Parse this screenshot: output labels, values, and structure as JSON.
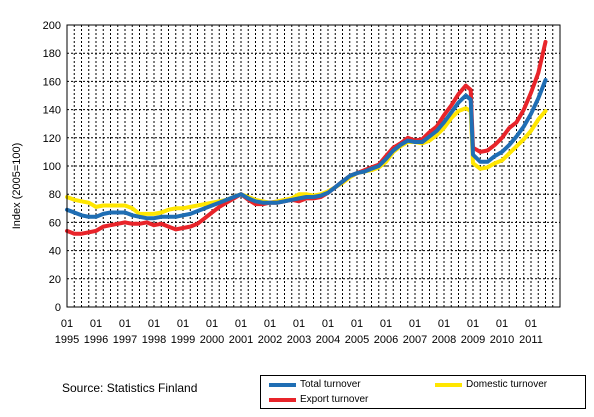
{
  "chart_data": {
    "type": "line",
    "title": "",
    "xlabel": "",
    "ylabel": "Index (2005=100)",
    "ylim": [
      0,
      200
    ],
    "yticks": [
      0,
      20,
      40,
      60,
      80,
      100,
      120,
      140,
      160,
      180,
      200
    ],
    "xrange": [
      1995.0,
      2012.0
    ],
    "grid": true,
    "legend_position": "bottom-right",
    "x_tick_years": [
      "1995",
      "1996",
      "1997",
      "1998",
      "1999",
      "2000",
      "2001",
      "2002",
      "2003",
      "2004",
      "2005",
      "2006",
      "2007",
      "2008",
      "2009",
      "2010",
      "2011"
    ],
    "x_tick_month_label": "01",
    "x_tick_month_years": [
      1995,
      1996,
      1997,
      1998,
      1999,
      2000,
      2001,
      2002,
      2003,
      2004,
      2005,
      2006,
      2007,
      2008,
      2009,
      2010,
      2011
    ],
    "series": [
      {
        "name": "Domestic turnover",
        "color": "#ffe600",
        "points": [
          [
            1995.0,
            78
          ],
          [
            1995.25,
            76
          ],
          [
            1995.5,
            75
          ],
          [
            1995.75,
            74
          ],
          [
            1996.0,
            71
          ],
          [
            1996.25,
            72
          ],
          [
            1996.5,
            72
          ],
          [
            1996.75,
            72
          ],
          [
            1997.0,
            72
          ],
          [
            1997.25,
            70
          ],
          [
            1997.5,
            66
          ],
          [
            1997.75,
            66
          ],
          [
            1998.0,
            66
          ],
          [
            1998.25,
            67
          ],
          [
            1998.5,
            69
          ],
          [
            1998.75,
            70
          ],
          [
            1999.0,
            70
          ],
          [
            1999.25,
            71
          ],
          [
            1999.5,
            72
          ],
          [
            1999.75,
            73
          ],
          [
            2000.0,
            74
          ],
          [
            2000.25,
            75
          ],
          [
            2000.5,
            76
          ],
          [
            2000.75,
            78
          ],
          [
            2001.0,
            80
          ],
          [
            2001.25,
            78
          ],
          [
            2001.5,
            76
          ],
          [
            2001.75,
            75
          ],
          [
            2002.0,
            74
          ],
          [
            2002.25,
            75
          ],
          [
            2002.5,
            76
          ],
          [
            2002.75,
            77
          ],
          [
            2003.0,
            80
          ],
          [
            2003.25,
            80
          ],
          [
            2003.5,
            79
          ],
          [
            2003.75,
            80
          ],
          [
            2004.0,
            82
          ],
          [
            2004.25,
            85
          ],
          [
            2004.5,
            88
          ],
          [
            2004.75,
            92
          ],
          [
            2005.0,
            95
          ],
          [
            2005.25,
            96
          ],
          [
            2005.5,
            97
          ],
          [
            2005.75,
            99
          ],
          [
            2006.0,
            103
          ],
          [
            2006.25,
            110
          ],
          [
            2006.5,
            114
          ],
          [
            2006.75,
            117
          ],
          [
            2007.0,
            117
          ],
          [
            2007.25,
            116
          ],
          [
            2007.5,
            118
          ],
          [
            2007.75,
            122
          ],
          [
            2008.0,
            127
          ],
          [
            2008.25,
            134
          ],
          [
            2008.5,
            139
          ],
          [
            2008.75,
            141
          ],
          [
            2008.92,
            139
          ],
          [
            2009.0,
            102
          ],
          [
            2009.25,
            98
          ],
          [
            2009.5,
            99
          ],
          [
            2009.75,
            102
          ],
          [
            2010.0,
            104
          ],
          [
            2010.25,
            109
          ],
          [
            2010.5,
            114
          ],
          [
            2010.75,
            119
          ],
          [
            2011.0,
            125
          ],
          [
            2011.25,
            133
          ],
          [
            2011.5,
            139
          ]
        ]
      },
      {
        "name": "Export turnover",
        "color": "#e8242a",
        "points": [
          [
            1995.0,
            54
          ],
          [
            1995.25,
            52
          ],
          [
            1995.5,
            52
          ],
          [
            1995.75,
            53
          ],
          [
            1996.0,
            54
          ],
          [
            1996.25,
            57
          ],
          [
            1996.5,
            58
          ],
          [
            1996.75,
            59
          ],
          [
            1997.0,
            60
          ],
          [
            1997.25,
            59
          ],
          [
            1997.5,
            59
          ],
          [
            1997.75,
            60
          ],
          [
            1998.0,
            58
          ],
          [
            1998.25,
            59
          ],
          [
            1998.5,
            57
          ],
          [
            1998.75,
            55
          ],
          [
            1999.0,
            56
          ],
          [
            1999.25,
            57
          ],
          [
            1999.5,
            59
          ],
          [
            1999.75,
            63
          ],
          [
            2000.0,
            67
          ],
          [
            2000.25,
            71
          ],
          [
            2000.5,
            74
          ],
          [
            2000.75,
            77
          ],
          [
            2001.0,
            80
          ],
          [
            2001.25,
            76
          ],
          [
            2001.5,
            73
          ],
          [
            2001.75,
            73
          ],
          [
            2002.0,
            74
          ],
          [
            2002.25,
            74
          ],
          [
            2002.5,
            75
          ],
          [
            2002.75,
            76
          ],
          [
            2003.0,
            75
          ],
          [
            2003.25,
            77
          ],
          [
            2003.5,
            77
          ],
          [
            2003.75,
            78
          ],
          [
            2004.0,
            81
          ],
          [
            2004.25,
            85
          ],
          [
            2004.5,
            89
          ],
          [
            2004.75,
            93
          ],
          [
            2005.0,
            95
          ],
          [
            2005.25,
            97
          ],
          [
            2005.5,
            99
          ],
          [
            2005.75,
            101
          ],
          [
            2006.0,
            107
          ],
          [
            2006.25,
            113
          ],
          [
            2006.5,
            116
          ],
          [
            2006.75,
            120
          ],
          [
            2007.0,
            118
          ],
          [
            2007.25,
            119
          ],
          [
            2007.5,
            124
          ],
          [
            2007.75,
            128
          ],
          [
            2008.0,
            136
          ],
          [
            2008.25,
            143
          ],
          [
            2008.5,
            151
          ],
          [
            2008.75,
            157
          ],
          [
            2008.92,
            154
          ],
          [
            2009.0,
            113
          ],
          [
            2009.25,
            110
          ],
          [
            2009.5,
            111
          ],
          [
            2009.75,
            115
          ],
          [
            2010.0,
            120
          ],
          [
            2010.25,
            127
          ],
          [
            2010.5,
            131
          ],
          [
            2010.75,
            140
          ],
          [
            2011.0,
            152
          ],
          [
            2011.25,
            166
          ],
          [
            2011.5,
            188
          ]
        ]
      },
      {
        "name": "Total turnover",
        "color": "#1f6eb4",
        "points": [
          [
            1995.0,
            69
          ],
          [
            1995.25,
            67
          ],
          [
            1995.5,
            65
          ],
          [
            1995.75,
            64
          ],
          [
            1996.0,
            64
          ],
          [
            1996.25,
            66
          ],
          [
            1996.5,
            67
          ],
          [
            1996.75,
            67
          ],
          [
            1997.0,
            67
          ],
          [
            1997.25,
            65
          ],
          [
            1997.5,
            64
          ],
          [
            1997.75,
            63
          ],
          [
            1998.0,
            63
          ],
          [
            1998.25,
            64
          ],
          [
            1998.5,
            64
          ],
          [
            1998.75,
            64
          ],
          [
            1999.0,
            65
          ],
          [
            1999.25,
            66
          ],
          [
            1999.5,
            68
          ],
          [
            1999.75,
            70
          ],
          [
            2000.0,
            72
          ],
          [
            2000.25,
            74
          ],
          [
            2000.5,
            76
          ],
          [
            2000.75,
            78
          ],
          [
            2001.0,
            80
          ],
          [
            2001.25,
            77
          ],
          [
            2001.5,
            75
          ],
          [
            2001.75,
            74
          ],
          [
            2002.0,
            74
          ],
          [
            2002.25,
            74
          ],
          [
            2002.5,
            75
          ],
          [
            2002.75,
            76
          ],
          [
            2003.0,
            77
          ],
          [
            2003.25,
            78
          ],
          [
            2003.5,
            78
          ],
          [
            2003.75,
            79
          ],
          [
            2004.0,
            81
          ],
          [
            2004.25,
            85
          ],
          [
            2004.5,
            89
          ],
          [
            2004.75,
            93
          ],
          [
            2005.0,
            95
          ],
          [
            2005.25,
            96
          ],
          [
            2005.5,
            98
          ],
          [
            2005.75,
            100
          ],
          [
            2006.0,
            105
          ],
          [
            2006.25,
            111
          ],
          [
            2006.5,
            115
          ],
          [
            2006.75,
            118
          ],
          [
            2007.0,
            117
          ],
          [
            2007.25,
            117
          ],
          [
            2007.5,
            121
          ],
          [
            2007.75,
            125
          ],
          [
            2008.0,
            131
          ],
          [
            2008.25,
            138
          ],
          [
            2008.5,
            145
          ],
          [
            2008.75,
            150
          ],
          [
            2008.92,
            147
          ],
          [
            2009.0,
            108
          ],
          [
            2009.25,
            103
          ],
          [
            2009.5,
            103
          ],
          [
            2009.75,
            107
          ],
          [
            2010.0,
            110
          ],
          [
            2010.25,
            115
          ],
          [
            2010.5,
            121
          ],
          [
            2010.75,
            128
          ],
          [
            2011.0,
            137
          ],
          [
            2011.25,
            148
          ],
          [
            2011.5,
            161
          ]
        ]
      }
    ],
    "legend_order": [
      "Total turnover",
      "Domestic turnover",
      "Export turnover"
    ]
  },
  "source_text": "Source: Statistics Finland"
}
